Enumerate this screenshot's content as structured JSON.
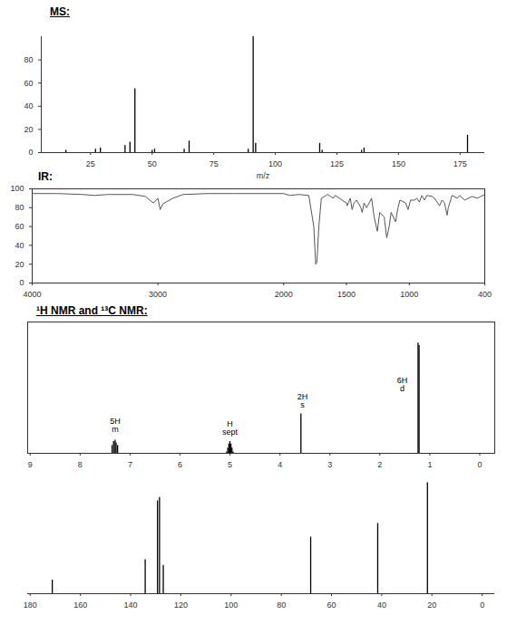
{
  "chart_data": [
    {
      "type": "stick",
      "title": "MS:",
      "x_label": "m/z",
      "x": [
        15,
        27,
        29,
        39,
        41,
        43,
        50,
        51,
        63,
        65,
        89,
        91,
        92,
        118,
        119,
        135,
        136,
        178
      ],
      "values": [
        2,
        3,
        4,
        6,
        9,
        55,
        2,
        3,
        3,
        10,
        3,
        100,
        8,
        8,
        2,
        2,
        4,
        15
      ],
      "color": "#000000",
      "xlim": [
        5,
        185
      ],
      "xticks": [
        25,
        50,
        75,
        100,
        125,
        150,
        175
      ],
      "ylim": [
        0,
        100
      ],
      "yticks": [
        0,
        20,
        40,
        60,
        80
      ]
    },
    {
      "type": "line",
      "title": "IR:",
      "x": [
        4000,
        3800,
        3600,
        3500,
        3400,
        3200,
        3100,
        3065,
        3035,
        3000,
        2982,
        2960,
        2935,
        2880,
        2800,
        2600,
        2400,
        2200,
        2000,
        1950,
        1880,
        1800,
        1760,
        1745,
        1735,
        1720,
        1700,
        1650,
        1605,
        1590,
        1500,
        1495,
        1470,
        1455,
        1440,
        1420,
        1385,
        1375,
        1360,
        1340,
        1300,
        1280,
        1255,
        1235,
        1200,
        1180,
        1160,
        1145,
        1110,
        1090,
        1075,
        1030,
        1010,
        990,
        960,
        940,
        920,
        900,
        880,
        860,
        820,
        800,
        760,
        740,
        720,
        700,
        690,
        660,
        620,
        600,
        560,
        500,
        460,
        400
      ],
      "values": [
        95,
        95,
        94,
        93,
        94,
        94,
        92,
        88,
        85,
        90,
        78,
        84,
        86,
        90,
        94,
        95,
        95,
        95,
        95,
        93,
        94,
        93,
        60,
        20,
        22,
        60,
        90,
        94,
        90,
        93,
        85,
        82,
        90,
        78,
        85,
        88,
        80,
        75,
        85,
        80,
        90,
        70,
        55,
        75,
        70,
        48,
        60,
        75,
        65,
        80,
        88,
        85,
        78,
        88,
        88,
        90,
        86,
        93,
        88,
        93,
        92,
        90,
        82,
        88,
        85,
        72,
        80,
        93,
        90,
        93,
        88,
        92,
        90,
        94
      ],
      "color": "#555555",
      "xlim": [
        4000,
        400
      ],
      "xticks": [
        4000,
        3000,
        2000,
        1500,
        1000,
        400
      ],
      "ylim": [
        0,
        100
      ],
      "yticks": [
        0,
        20,
        40,
        60,
        80,
        100
      ]
    },
    {
      "type": "stick",
      "title": "¹H NMR and ¹³C NMR:",
      "x": [
        7.36,
        7.33,
        7.3,
        7.28,
        7.25,
        5.065,
        5.044,
        5.023,
        5.002,
        4.981,
        4.96,
        4.939,
        3.58,
        1.235,
        1.215
      ],
      "values": [
        6,
        9,
        10,
        8,
        6,
        1,
        4,
        7,
        9,
        7,
        4,
        1,
        30,
        84,
        82
      ],
      "color": "#000000",
      "xlim": [
        9.05,
        -0.3
      ],
      "xticks": [
        9,
        8,
        7,
        6,
        5,
        4,
        3,
        2,
        1,
        0
      ],
      "ylim": [
        0,
        100
      ],
      "tick_labels": "x",
      "annotations": [
        {
          "x": 7.3,
          "y": 14,
          "text": "5H\nm"
        },
        {
          "x": 5.0,
          "y": 12,
          "text": "H\nsept"
        },
        {
          "x": 3.55,
          "y": 33,
          "text": "2H\ns"
        },
        {
          "x": 1.55,
          "y": 45,
          "text": "6H\nd"
        }
      ]
    },
    {
      "type": "stick",
      "x": [
        171.2,
        134.2,
        129.3,
        128.5,
        127.0,
        68.3,
        41.6,
        21.8
      ],
      "values": [
        12,
        30,
        82,
        85,
        25,
        50,
        62,
        98
      ],
      "color": "#000000",
      "xlim": [
        181,
        -5
      ],
      "xticks": [
        180,
        160,
        140,
        120,
        100,
        80,
        60,
        40,
        20,
        0
      ],
      "ylim": [
        0,
        100
      ],
      "tick_labels": "x"
    }
  ]
}
